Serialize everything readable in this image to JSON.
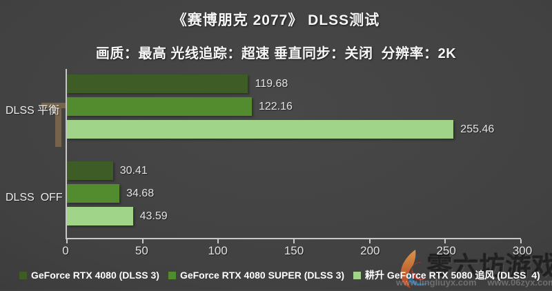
{
  "title": "《赛博朋克 2077》 DLSS测试",
  "subtitle": "画质：最高 光线追踪：超速 垂直同步：关闭  分辨率：2K",
  "chart_data": {
    "type": "bar",
    "orientation": "horizontal",
    "title": "《赛博朋克 2077》 DLSS测试",
    "subtitle": "画质：最高 光线追踪：超速 垂直同步：关闭 分辨率：2K",
    "categories": [
      "DLSS 平衡",
      "DLSS  OFF"
    ],
    "series": [
      {
        "name": "GeForce RTX 4080 (DLSS 3)",
        "color": "#3d5c26",
        "values": [
          119.68,
          30.41
        ]
      },
      {
        "name": "GeForce RTX 4080 SUPER (DLSS 3)",
        "color": "#538b2f",
        "values": [
          122.16,
          34.68
        ]
      },
      {
        "name": "耕升 GeForce RTX 5080 追风 (DLSS  4)",
        "color": "#a0d489",
        "values": [
          255.46,
          43.59
        ]
      }
    ],
    "xlim": [
      0,
      300
    ],
    "x_ticks": [
      0,
      50,
      100,
      150,
      200,
      250,
      300
    ],
    "ylabel": "",
    "xlabel": "",
    "grid": false,
    "legend_position": "bottom",
    "value_labels": true
  },
  "watermark": {
    "brand": "零六坊游戏",
    "urls": [
      "www.lingliuyx.com",
      "www.06zyx.com"
    ]
  },
  "colors": {
    "bar_dark_green": "#3d5c26",
    "bar_medium_green": "#538b2f",
    "bar_light_green": "#a0d489",
    "axis": "#c9c9c9",
    "text": "#f7f7f7"
  }
}
